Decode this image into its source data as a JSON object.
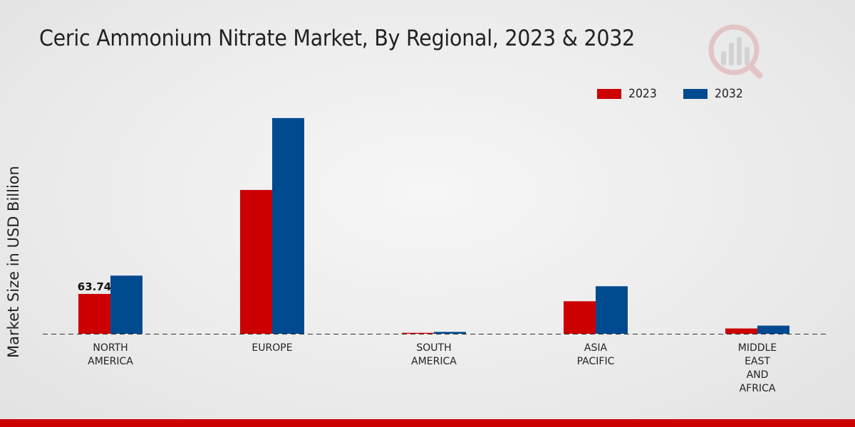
{
  "chart_data": {
    "type": "bar",
    "title": "Ceric Ammonium Nitrate Market, By Regional, 2023 & 2032",
    "ylabel": "Market Size in USD Billion",
    "xlabel": "",
    "categories": [
      "NORTH\nAMERICA",
      "EUROPE",
      "SOUTH\nAMERICA",
      "ASIA\nPACIFIC",
      "MIDDLE\nEAST\nAND\nAFRICA"
    ],
    "series": [
      {
        "name": "2023",
        "color": "#cc0000",
        "values": [
          63.74,
          230.0,
          1.5,
          52.0,
          8.5
        ]
      },
      {
        "name": "2032",
        "color": "#004a8f",
        "values": [
          93.0,
          345.0,
          3.0,
          76.0,
          13.0
        ]
      }
    ],
    "data_labels": [
      {
        "series": 0,
        "index": 0,
        "text": "63.74"
      }
    ],
    "ylim": [
      0,
      420
    ],
    "grid": false,
    "legend": "top-right"
  }
}
